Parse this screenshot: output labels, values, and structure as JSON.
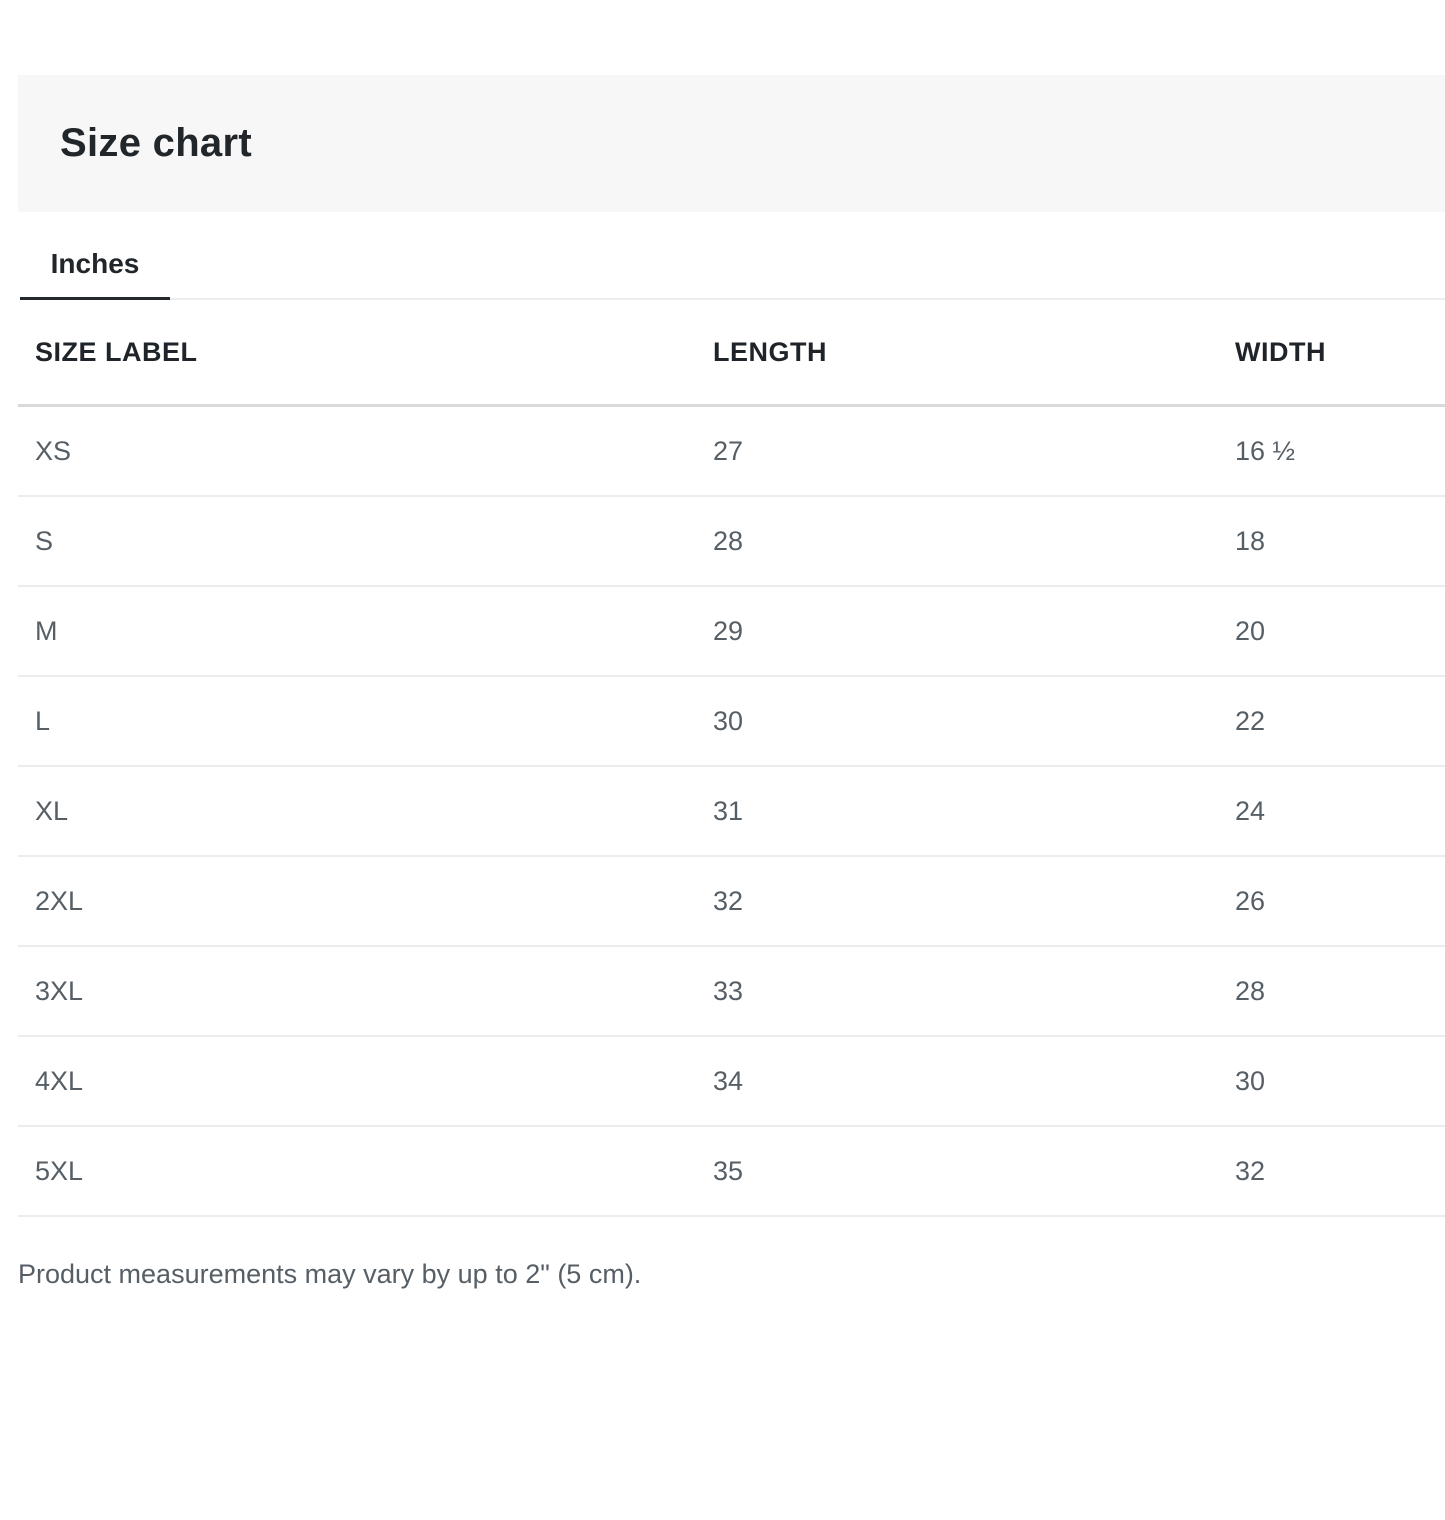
{
  "header": {
    "title": "Size chart"
  },
  "tabs": {
    "items": [
      {
        "label": "Inches",
        "active": true
      }
    ]
  },
  "table": {
    "columns": [
      "SIZE LABEL",
      "LENGTH",
      "WIDTH"
    ],
    "rows": [
      {
        "size_label": "XS",
        "length": "27",
        "width": "16 ½"
      },
      {
        "size_label": "S",
        "length": "28",
        "width": "18"
      },
      {
        "size_label": "M",
        "length": "29",
        "width": "20"
      },
      {
        "size_label": "L",
        "length": "30",
        "width": "22"
      },
      {
        "size_label": "XL",
        "length": "31",
        "width": "24"
      },
      {
        "size_label": "2XL",
        "length": "32",
        "width": "26"
      },
      {
        "size_label": "3XL",
        "length": "33",
        "width": "28"
      },
      {
        "size_label": "4XL",
        "length": "34",
        "width": "30"
      },
      {
        "size_label": "5XL",
        "length": "35",
        "width": "32"
      }
    ]
  },
  "footer": {
    "note": "Product measurements may vary by up to 2\" (5 cm)."
  },
  "colors": {
    "heading_text": "#21262b",
    "body_text": "#565e66",
    "header_band_bg": "#f7f7f7",
    "active_tab_underline": "#24292e",
    "tab_baseline": "#ededed",
    "header_divider": "#d9d9d9",
    "row_divider": "#ebeced"
  }
}
